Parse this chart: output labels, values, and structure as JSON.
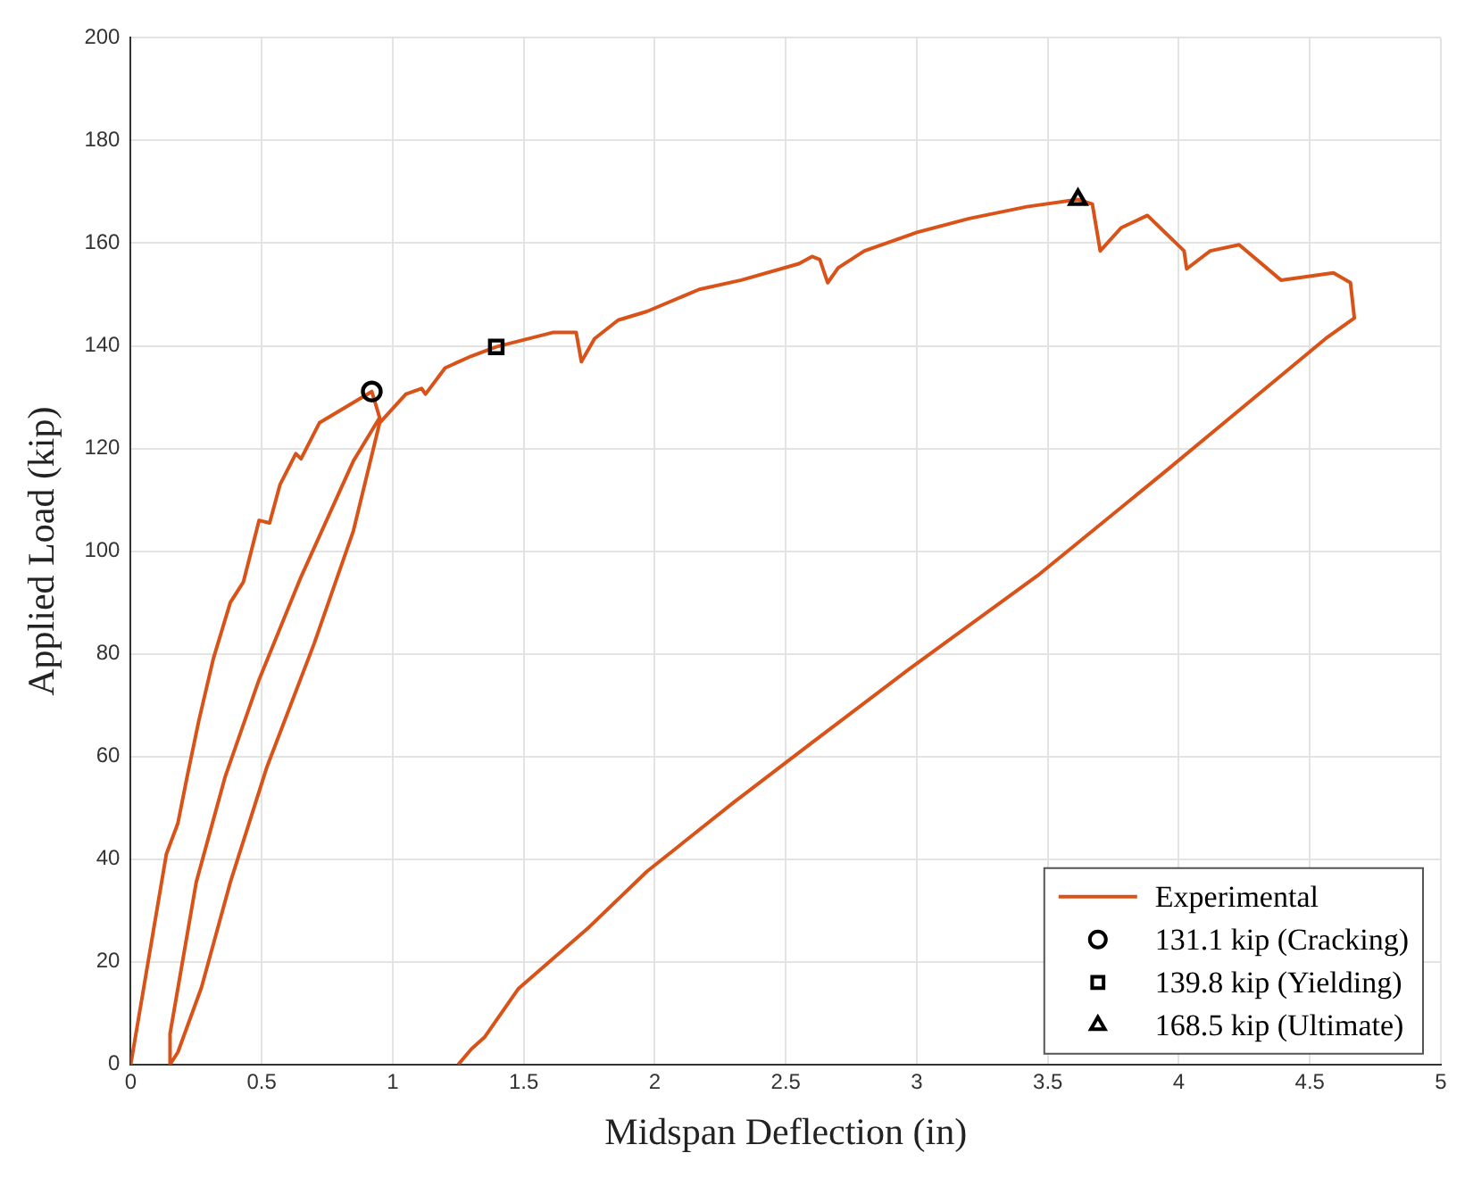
{
  "chart_data": {
    "type": "line",
    "xlabel": "Midspan Deflection (in)",
    "ylabel": "Applied Load (kip)",
    "xlim": [
      0,
      5
    ],
    "xticks": [
      0,
      0.5,
      1,
      1.5,
      2,
      2.5,
      3,
      3.5,
      4,
      4.5,
      5
    ],
    "ylim": [
      0,
      200
    ],
    "yticks": [
      0,
      20,
      40,
      60,
      80,
      100,
      120,
      140,
      160,
      180,
      200
    ],
    "grid": true,
    "legend": "bottom right",
    "line_style": "solid",
    "series": [
      {
        "name": "Experimental",
        "type": "line",
        "color": "#d95319",
        "marker": "none",
        "x": [
          0,
          0.136,
          0.18,
          0.215,
          0.26,
          0.315,
          0.38,
          0.43,
          0.49,
          0.53,
          0.57,
          0.63,
          0.65,
          0.72,
          0.92,
          0.95,
          0.85,
          0.65,
          0.49,
          0.36,
          0.25,
          0.15,
          0.15,
          0.18,
          0.27,
          0.38,
          0.52,
          0.7,
          0.85,
          0.95,
          1.05,
          1.11,
          1.125,
          1.2,
          1.3,
          1.395,
          1.61,
          1.7,
          1.72,
          1.77,
          1.86,
          1.97,
          2.17,
          2.33,
          2.55,
          2.6,
          2.63,
          2.66,
          2.7,
          2.8,
          3.0,
          3.2,
          3.42,
          3.615,
          3.67,
          3.7,
          3.78,
          3.88,
          4.02,
          4.03,
          4.12,
          4.23,
          4.39,
          4.59,
          4.655,
          4.67,
          4.56,
          3.95,
          3.46,
          2.97,
          2.59,
          2.3,
          1.97,
          1.75,
          1.48,
          1.35,
          1.3,
          1.25
        ],
        "values": [
          0,
          41,
          47,
          56,
          67,
          79,
          90,
          94,
          106,
          105.5,
          113,
          119,
          118,
          125,
          131.1,
          126,
          117.6,
          95,
          75,
          56,
          35.5,
          6,
          0,
          2.4,
          15,
          35.5,
          58,
          82,
          104,
          125,
          130.6,
          131.7,
          130.6,
          135.7,
          138,
          139.8,
          142.6,
          142.6,
          136.9,
          141.4,
          145,
          146.7,
          151,
          152.8,
          156,
          157.4,
          156.8,
          152.3,
          155.2,
          158.5,
          162.1,
          164.8,
          167.1,
          168.5,
          167.6,
          158.5,
          163,
          165.4,
          158.5,
          155,
          158.5,
          159.7,
          152.8,
          154.2,
          152.3,
          145.4,
          141.4,
          115.6,
          95.2,
          77,
          62.3,
          51,
          37.6,
          26.8,
          14.8,
          5.3,
          3,
          0
        ]
      },
      {
        "name": "131.1 kip (Cracking)",
        "type": "scatter",
        "color": "#000000",
        "marker": "circle",
        "x": [
          0.92
        ],
        "values": [
          131.1
        ]
      },
      {
        "name": "139.8 kip (Yielding)",
        "type": "scatter",
        "color": "#000000",
        "marker": "square",
        "x": [
          1.395
        ],
        "values": [
          139.8
        ]
      },
      {
        "name": "168.5 kip (Ultimate)",
        "type": "scatter",
        "color": "#000000",
        "marker": "triangle",
        "x": [
          3.615
        ],
        "values": [
          168.5
        ]
      }
    ]
  }
}
